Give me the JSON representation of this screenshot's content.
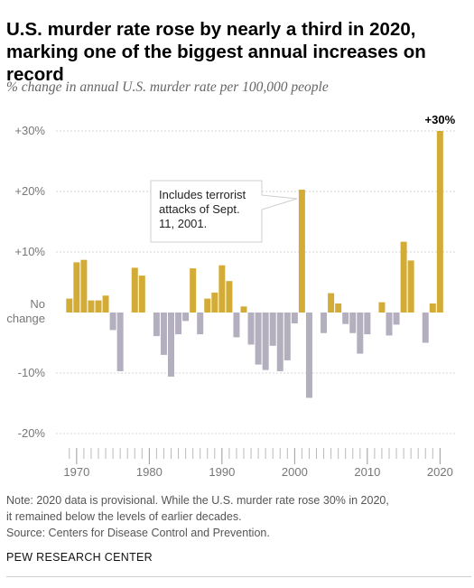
{
  "header": {
    "title_line1": "U.S. murder rate rose by nearly a third in 2020,",
    "title_line2": "marking one of the biggest annual increases on record",
    "subtitle": "% change in annual U.S. murder rate per 100,000 people"
  },
  "notes": {
    "line1": "Note: 2020 data is provisional. While the U.S. murder rate rose 30% in 2020,",
    "line2": "it remained below the levels of earlier decades.",
    "line3": "Source: Centers for Disease Control and Prevention."
  },
  "footer": {
    "org": "PEW RESEARCH CENTER"
  },
  "chart_data": {
    "type": "bar",
    "title": "% change in annual U.S. murder rate per 100,000 people",
    "x": [
      1969,
      1970,
      1971,
      1972,
      1973,
      1974,
      1975,
      1976,
      1977,
      1978,
      1979,
      1980,
      1981,
      1982,
      1983,
      1984,
      1985,
      1986,
      1987,
      1988,
      1989,
      1990,
      1991,
      1992,
      1993,
      1994,
      1995,
      1996,
      1997,
      1998,
      1999,
      2000,
      2001,
      2002,
      2003,
      2004,
      2005,
      2006,
      2007,
      2008,
      2009,
      2010,
      2011,
      2012,
      2013,
      2014,
      2015,
      2016,
      2017,
      2018,
      2019,
      2020
    ],
    "values": [
      2.3,
      8.3,
      8.7,
      2.0,
      2.0,
      2.8,
      -2.9,
      -9.7,
      0,
      7.4,
      6.1,
      0,
      -3.9,
      -7.0,
      -10.6,
      -3.6,
      -1.4,
      7.3,
      -3.6,
      2.3,
      3.3,
      7.8,
      5.2,
      -4.1,
      1.0,
      -5.3,
      -8.6,
      -9.5,
      -5.5,
      -9.7,
      -7.9,
      -1.8,
      20.3,
      -14.1,
      0,
      -3.4,
      3.2,
      1.5,
      -1.9,
      -3.4,
      -6.8,
      -3.6,
      0,
      1.7,
      -3.8,
      -2.0,
      11.7,
      8.6,
      0,
      -5.0,
      1.5,
      30.0
    ],
    "xlim": [
      1968.5,
      2020.5
    ],
    "ylim": [
      -20,
      30
    ],
    "yticks": [
      -20,
      -10,
      0,
      10,
      20,
      30
    ],
    "ytick_labels": [
      "-20%",
      "-10%",
      "No",
      "+10%",
      "+20%",
      "+30%"
    ],
    "ytick_zero_extra": "change",
    "xticks": [
      1970,
      1980,
      1990,
      2000,
      2010,
      2020
    ],
    "xtick_labels": [
      "1970",
      "1980",
      "1990",
      "2000",
      "2010",
      "2020"
    ],
    "colors": {
      "increase": "#d3ac38",
      "decrease": "#b4afbf",
      "grid": "#d6d6d6",
      "tick_label": "#777777",
      "axis_tick": "#bbbbbb"
    },
    "grid": true,
    "annotations": [
      {
        "text_lines": [
          "Includes terrorist",
          "attacks of Sept.",
          "11, 2001."
        ],
        "x": 2001,
        "y": 20.3
      },
      {
        "text": "+30%",
        "x": 2020,
        "y": 30.0
      }
    ]
  }
}
